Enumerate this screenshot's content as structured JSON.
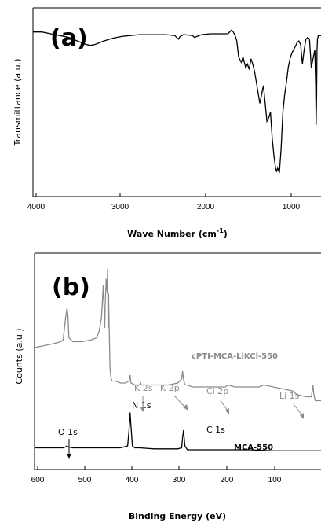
{
  "chart_data": [
    {
      "type": "line",
      "panel_label": "(a)",
      "xlabel": "Wave Number (cm",
      "xlabel_sup": "-1",
      "xlabel_end": ")",
      "ylabel": "Transmittance (a.u.)",
      "x_reversed": true,
      "xlim": [
        4000,
        750
      ],
      "ylim": [
        0,
        1
      ],
      "xticks": [
        "4000",
        "3000",
        "2000",
        "1000"
      ],
      "series": [
        {
          "color": "#000000",
          "x": [
            4000,
            3900,
            3800,
            3700,
            3600,
            3500,
            3400,
            3350,
            3300,
            3200,
            3100,
            3000,
            2900,
            2800,
            2700,
            2600,
            2500,
            2400,
            2360,
            2340,
            2300,
            2200,
            2180,
            2150,
            2100,
            2000,
            1900,
            1800,
            1760,
            1740,
            1720,
            1700,
            1680,
            1650,
            1630,
            1600,
            1580,
            1560,
            1540,
            1520,
            1500,
            1480,
            1460,
            1440,
            1420,
            1400,
            1380,
            1360,
            1340,
            1320,
            1300,
            1280,
            1260,
            1250,
            1240,
            1220,
            1200,
            1180,
            1160,
            1140,
            1120,
            1100,
            1080,
            1060,
            1040,
            1020,
            1000,
            980,
            960,
            940,
            920,
            900,
            880,
            860,
            840,
            820,
            810,
            805,
            800,
            795,
            790,
            780,
            760,
            750
          ],
          "y": [
            0.9,
            0.9,
            0.89,
            0.88,
            0.87,
            0.85,
            0.83,
            0.825,
            0.83,
            0.85,
            0.865,
            0.875,
            0.88,
            0.885,
            0.885,
            0.885,
            0.885,
            0.88,
            0.86,
            0.875,
            0.885,
            0.88,
            0.87,
            0.875,
            0.885,
            0.89,
            0.89,
            0.89,
            0.91,
            0.9,
            0.88,
            0.85,
            0.76,
            0.73,
            0.76,
            0.7,
            0.72,
            0.69,
            0.75,
            0.72,
            0.68,
            0.62,
            0.56,
            0.5,
            0.55,
            0.6,
            0.5,
            0.4,
            0.42,
            0.45,
            0.3,
            0.2,
            0.13,
            0.12,
            0.14,
            0.11,
            0.25,
            0.45,
            0.55,
            0.62,
            0.7,
            0.75,
            0.78,
            0.8,
            0.82,
            0.84,
            0.85,
            0.83,
            0.72,
            0.8,
            0.86,
            0.87,
            0.86,
            0.7,
            0.75,
            0.8,
            0.6,
            0.38,
            0.55,
            0.8,
            0.86,
            0.88,
            0.88,
            0.88
          ]
        }
      ]
    },
    {
      "type": "line",
      "panel_label": "(b)",
      "xlabel": "Binding Energy (eV)",
      "ylabel": "Counts (a.u.)",
      "x_reversed": true,
      "xlim": [
        600,
        0
      ],
      "ylim": [
        0,
        1
      ],
      "xticks": [
        "600",
        "500",
        "400",
        "300",
        "200",
        "100"
      ],
      "series": [
        {
          "name": "cPTI-MCA-LiKCl-550",
          "color": "#8a8a8a",
          "x": [
            600,
            580,
            560,
            545,
            540,
            535,
            532,
            530,
            528,
            520,
            500,
            480,
            470,
            465,
            460,
            458,
            456,
            455,
            453,
            452,
            450,
            448,
            447,
            446,
            445,
            444,
            442,
            440,
            438,
            430,
            420,
            410,
            402,
            400,
            398,
            390,
            380,
            378,
            376,
            370,
            360,
            350,
            320,
            300,
            292,
            290,
            288,
            285,
            280,
            270,
            250,
            220,
            200,
            195,
            180,
            150,
            130,
            120,
            100,
            80,
            60,
            55,
            50,
            30,
            20,
            17,
            15,
            12,
            10,
            5,
            0
          ],
          "y": [
            0.6,
            0.61,
            0.62,
            0.63,
            0.64,
            0.75,
            0.8,
            0.76,
            0.65,
            0.63,
            0.63,
            0.64,
            0.65,
            0.68,
            0.75,
            0.83,
            0.92,
            0.84,
            0.7,
            0.82,
            0.95,
            0.88,
            1.0,
            0.7,
            0.88,
            0.74,
            0.5,
            0.45,
            0.43,
            0.43,
            0.42,
            0.42,
            0.43,
            0.46,
            0.42,
            0.41,
            0.41,
            0.42,
            0.41,
            0.41,
            0.41,
            0.41,
            0.41,
            0.42,
            0.44,
            0.48,
            0.44,
            0.41,
            0.41,
            0.4,
            0.4,
            0.4,
            0.4,
            0.41,
            0.4,
            0.4,
            0.4,
            0.41,
            0.4,
            0.39,
            0.38,
            0.37,
            0.36,
            0.35,
            0.35,
            0.41,
            0.36,
            0.33,
            0.33,
            0.33,
            0.33
          ]
        },
        {
          "name": "MCA-550",
          "color": "#000000",
          "x": [
            600,
            550,
            540,
            535,
            532,
            530,
            520,
            500,
            450,
            420,
            405,
            402,
            400,
            398,
            395,
            390,
            380,
            350,
            320,
            300,
            292,
            290,
            288,
            285,
            280,
            250,
            200,
            150,
            100,
            50,
            0
          ],
          "y": [
            0.09,
            0.09,
            0.09,
            0.095,
            0.1,
            0.095,
            0.09,
            0.09,
            0.09,
            0.09,
            0.1,
            0.18,
            0.27,
            0.2,
            0.1,
            0.09,
            0.09,
            0.085,
            0.085,
            0.085,
            0.09,
            0.14,
            0.18,
            0.1,
            0.08,
            0.08,
            0.08,
            0.08,
            0.075,
            0.075,
            0.075
          ]
        }
      ],
      "annotations": [
        {
          "text": "cPTI-MCA-LiKCl-550",
          "style": "legend-grey"
        },
        {
          "text": "MCA-550",
          "style": "legend-black"
        },
        {
          "text": "O 1s",
          "style": "black"
        },
        {
          "text": "N 1s",
          "style": "black"
        },
        {
          "text": "C 1s",
          "style": "black"
        },
        {
          "text": "K 2s",
          "style": "grey"
        },
        {
          "text": "K 2p",
          "style": "grey"
        },
        {
          "text": "Cl 2p",
          "style": "grey"
        },
        {
          "text": "Li 1s",
          "style": "grey"
        }
      ]
    }
  ]
}
